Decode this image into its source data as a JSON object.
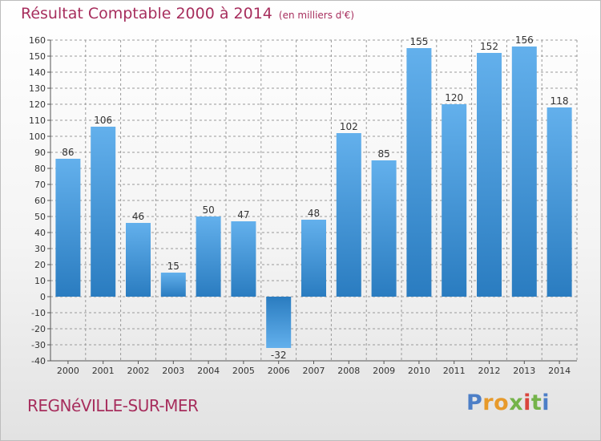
{
  "title": "Résultat Comptable 2000 à 2014",
  "unit_note": "(en milliers d'€)",
  "commune": "REGNéVILLE-SUR-MER",
  "logo": {
    "text": "Proxiti"
  },
  "colors": {
    "bar": "#3e8fd3",
    "title": "#a72e5d",
    "grid": "#9a9a9a"
  },
  "chart_data": {
    "type": "bar",
    "categories": [
      "2000",
      "2001",
      "2002",
      "2003",
      "2004",
      "2005",
      "2006",
      "2007",
      "2008",
      "2009",
      "2010",
      "2011",
      "2012",
      "2013",
      "2014"
    ],
    "values": [
      86,
      106,
      46,
      15,
      50,
      47,
      -32,
      48,
      102,
      85,
      155,
      120,
      152,
      156,
      118
    ],
    "data_labels": [
      "86",
      "106",
      "46",
      "15",
      "50",
      "47",
      "-32",
      "48",
      "102",
      "85",
      "155",
      "120",
      "152",
      "156",
      "118"
    ],
    "ylim": [
      -40,
      160
    ],
    "yticks": [
      160,
      150,
      140,
      130,
      120,
      110,
      100,
      90,
      80,
      70,
      60,
      50,
      40,
      30,
      20,
      10,
      0,
      -10,
      -20,
      -30,
      -40
    ],
    "grid": true,
    "xlabel": "",
    "ylabel": ""
  }
}
